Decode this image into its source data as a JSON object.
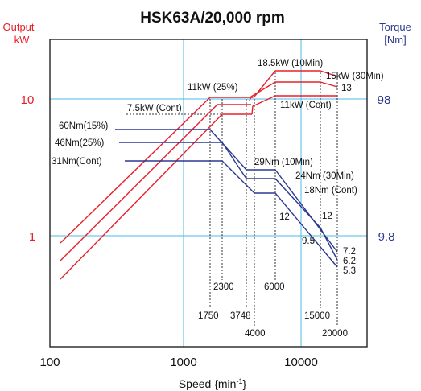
{
  "chart_data": {
    "type": "line",
    "title": "HSK63A/20,000 rpm",
    "xlabel": "Speed {min-1}",
    "x_scale": "log",
    "x_ticks": [
      "100",
      "1000",
      "10000"
    ],
    "y_scale": "log",
    "ylabel_left": "Output kW",
    "ylabel_left_lines": [
      "Output",
      "kW"
    ],
    "ylabel_right": "Torque [Nm]",
    "ylabel_right_lines": [
      "Torque",
      "[Nm]"
    ],
    "y_ticks_left": [
      "10",
      "1"
    ],
    "y_ticks_right": [
      "98",
      "9.8"
    ],
    "grid": true,
    "colors": {
      "power": "#e8202a",
      "torque": "#2b3990",
      "grid": "#4db8e8",
      "axis": "#222222"
    },
    "power_series": [
      {
        "name": "11kW (25%)",
        "points": [
          [
            120,
            0.86
          ],
          [
            1750,
            11
          ],
          [
            4000,
            11
          ]
        ]
      },
      {
        "name": "18.5kW (10Min)",
        "points": [
          [
            4100,
            11
          ],
          [
            6000,
            18.5
          ],
          [
            20000,
            18.5
          ]
        ]
      },
      {
        "name": "15kW (30Min)",
        "points": [
          [
            15000,
            15
          ],
          [
            20000,
            15
          ]
        ]
      },
      {
        "name": "7.5kW (Cont)",
        "points": [
          [
            120,
            0.59
          ],
          [
            2300,
            7.5
          ],
          [
            3748,
            7.5
          ]
        ]
      },
      {
        "name": "11kW (Cont)",
        "points": [
          [
            3900,
            6.8
          ],
          [
            6000,
            11
          ],
          [
            15000,
            11
          ],
          [
            20000,
            11
          ]
        ]
      }
    ],
    "torque_series": [
      {
        "name": "60Nm(15%)",
        "points": [
          [
            120,
            60
          ],
          [
            1750,
            60
          ],
          [
            3748,
            28
          ],
          [
            4000,
            28
          ]
        ]
      },
      {
        "name": "46Nm(25%)",
        "points": [
          [
            120,
            46
          ],
          [
            2300,
            46
          ],
          [
            3748,
            28
          ],
          [
            4000,
            28
          ]
        ]
      },
      {
        "name": "31Nm(Cont)",
        "points": [
          [
            120,
            31
          ],
          [
            2300,
            31
          ],
          [
            3748,
            20
          ],
          [
            4000,
            20
          ]
        ]
      },
      {
        "name": "29Nm (10Min)",
        "points": [
          [
            4000,
            29
          ],
          [
            6000,
            29
          ],
          [
            20000,
            7.2
          ]
        ]
      },
      {
        "name": "24Nm (30Min)",
        "points": [
          [
            4000,
            24
          ],
          [
            6000,
            24
          ],
          [
            15000,
            9.5
          ],
          [
            20000,
            6.2
          ]
        ]
      },
      {
        "name": "18Nm (Cont)",
        "points": [
          [
            4000,
            18
          ],
          [
            6000,
            18
          ],
          [
            20000,
            5.3
          ]
        ]
      }
    ],
    "annotations": [
      "11kW (25%)",
      "18.5kW (10Min)",
      "15kW (30Min)",
      "13",
      "7.5kW (Cont)",
      "11kW (Cont)",
      "60Nm(15%)",
      "46Nm(25%)",
      "31Nm(Cont)",
      "29Nm (10Min)",
      "24Nm (30Min)",
      "18Nm (Cont)",
      "12",
      "12",
      "9.5",
      "7.2",
      "6.2",
      "5.3",
      "2300",
      "6000",
      "1750",
      "3748",
      "4000",
      "15000",
      "20000"
    ]
  }
}
